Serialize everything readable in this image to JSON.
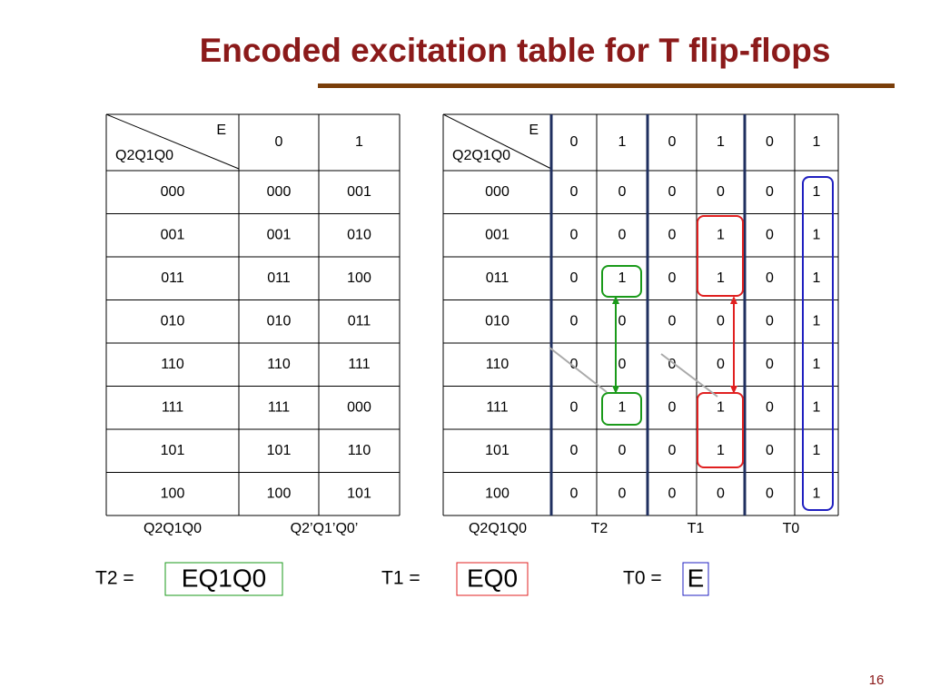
{
  "title": "Encoded excitation table for T flip-flops",
  "left_table": {
    "corner_top": "E",
    "corner_bottom": "Q2Q1Q0",
    "header": [
      "0",
      "1"
    ],
    "rows": [
      [
        "000",
        "000",
        "001"
      ],
      [
        "001",
        "001",
        "010"
      ],
      [
        "011",
        "011",
        "100"
      ],
      [
        "010",
        "010",
        "011"
      ],
      [
        "110",
        "110",
        "111"
      ],
      [
        "111",
        "111",
        "000"
      ],
      [
        "101",
        "101",
        "110"
      ],
      [
        "100",
        "100",
        "101"
      ]
    ],
    "footer": [
      "Q2Q1Q0",
      "Q2’Q1’Q0’"
    ]
  },
  "right_table": {
    "corner_top": "E",
    "corner_bottom": "Q2Q1Q0",
    "header": [
      "0",
      "1",
      "0",
      "1",
      "0",
      "1"
    ],
    "rows": [
      [
        "000",
        "0",
        "0",
        "0",
        "0",
        "0",
        "1"
      ],
      [
        "001",
        "0",
        "0",
        "0",
        "1",
        "0",
        "1"
      ],
      [
        "011",
        "0",
        "1",
        "0",
        "1",
        "0",
        "1"
      ],
      [
        "010",
        "0",
        "0",
        "0",
        "0",
        "0",
        "1"
      ],
      [
        "110",
        "0",
        "0",
        "0",
        "0",
        "0",
        "1"
      ],
      [
        "111",
        "0",
        "1",
        "0",
        "1",
        "0",
        "1"
      ],
      [
        "101",
        "0",
        "0",
        "0",
        "1",
        "0",
        "1"
      ],
      [
        "100",
        "0",
        "0",
        "0",
        "0",
        "0",
        "1"
      ]
    ],
    "footer": [
      "Q2Q1Q0",
      "T2",
      "T1",
      "T0"
    ]
  },
  "equations": [
    {
      "label": "T2 =",
      "expr": "EQ1Q0"
    },
    {
      "label": "T1 =",
      "expr": "EQ0"
    },
    {
      "label": "T0 =",
      "expr": "E"
    }
  ],
  "page_number": "16"
}
